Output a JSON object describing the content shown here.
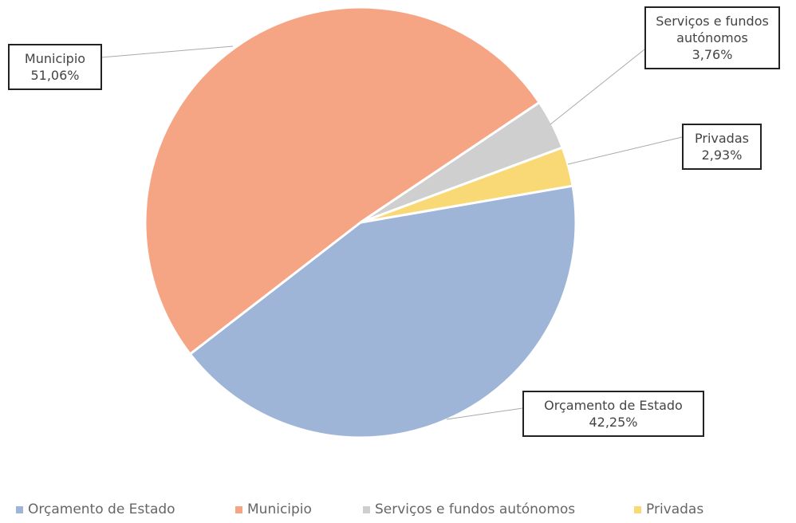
{
  "chart_data": {
    "type": "pie",
    "categories": [
      "Orçamento de Estado",
      "Municipio",
      "Serviços e fundos autónomos",
      "Privadas"
    ],
    "values": [
      42.25,
      51.06,
      3.76,
      2.93
    ],
    "value_labels": [
      "42,25%",
      "51,06%",
      "3,76%",
      "2,93%"
    ],
    "colors": [
      "#9fb5d8",
      "#f6a584",
      "#cfcfcf",
      "#f9d976"
    ],
    "legend": "bottom"
  }
}
